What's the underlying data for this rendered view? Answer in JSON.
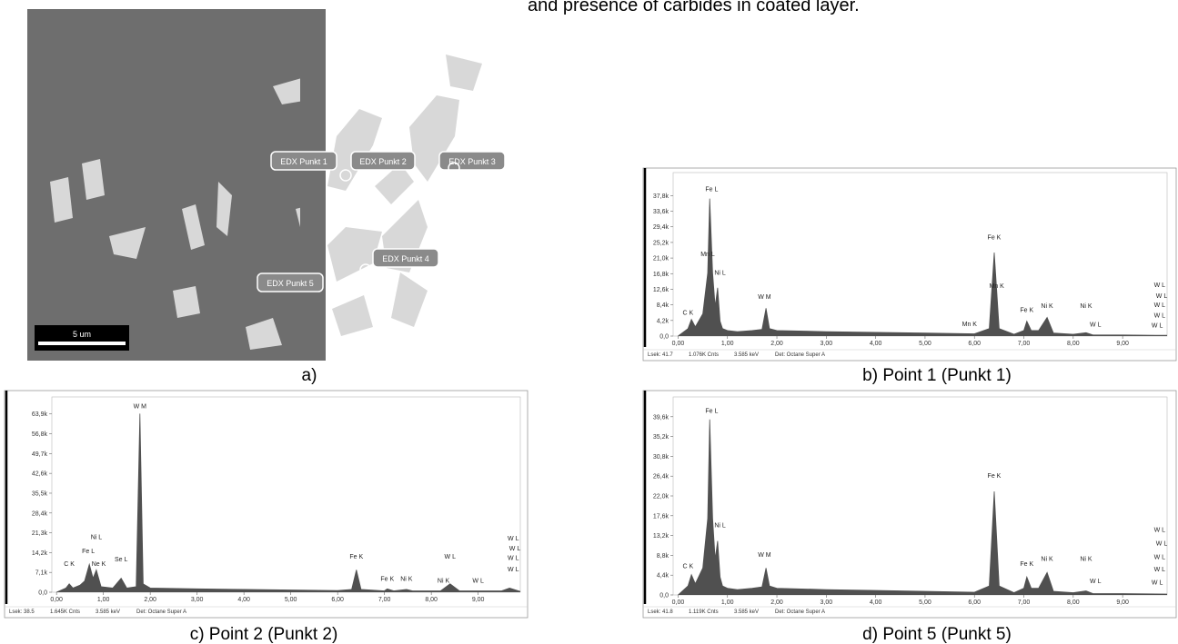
{
  "header": {
    "text": "and presence of carbides in coated layer."
  },
  "image": {
    "labels": [
      "EDX Punkt 1",
      "EDX Punkt 2",
      "EDX Punkt 3",
      "EDX Punkt 4",
      "EDX Punkt 5"
    ],
    "scale_bar": "5 um",
    "caption": "a)"
  },
  "chart_data": [
    {
      "type": "area",
      "caption": "b) Point 1 (Punkt 1)",
      "color": "#505050",
      "x": [
        0.0,
        0.2,
        0.27,
        0.35,
        0.5,
        0.6,
        0.64,
        0.7,
        0.75,
        0.8,
        0.85,
        0.9,
        1.0,
        1.2,
        1.5,
        1.7,
        1.78,
        1.85,
        2.0,
        3.0,
        4.0,
        5.0,
        6.0,
        6.3,
        6.4,
        6.5,
        6.8,
        7.0,
        7.06,
        7.15,
        7.3,
        7.47,
        7.6,
        8.0,
        8.26,
        8.4,
        9.0,
        9.9
      ],
      "values": [
        0,
        2000,
        4500,
        2500,
        6000,
        17000,
        37000,
        17000,
        8000,
        13000,
        4000,
        2000,
        1500,
        1200,
        1500,
        1800,
        7500,
        2000,
        1500,
        1200,
        1000,
        800,
        600,
        2000,
        22500,
        2000,
        500,
        1500,
        4000,
        1500,
        1500,
        5000,
        800,
        500,
        900,
        300,
        300,
        200
      ],
      "xlim": [
        -0.1,
        9.9
      ],
      "xticks": [
        {
          "value": 0,
          "label": "0,00"
        },
        {
          "value": 1,
          "label": "1,00"
        },
        {
          "value": 2,
          "label": "2,00"
        },
        {
          "value": 3,
          "label": "3,00"
        },
        {
          "value": 4,
          "label": "4,00"
        },
        {
          "value": 5,
          "label": "5,00"
        },
        {
          "value": 6,
          "label": "6,00"
        },
        {
          "value": 7,
          "label": "7,00"
        },
        {
          "value": 8,
          "label": "8,00"
        },
        {
          "value": 9,
          "label": "9,00"
        }
      ],
      "ylim": [
        0,
        44000
      ],
      "yticks": [
        {
          "value": 0,
          "label": "0,0"
        },
        {
          "value": 4200,
          "label": "4,2k"
        },
        {
          "value": 8400,
          "label": "8,4k"
        },
        {
          "value": 12600,
          "label": "12,6k"
        },
        {
          "value": 16800,
          "label": "16,8k"
        },
        {
          "value": 21000,
          "label": "21,0k"
        },
        {
          "value": 25200,
          "label": "25,2k"
        },
        {
          "value": 29400,
          "label": "29,4k"
        },
        {
          "value": 33600,
          "label": "33,6k"
        },
        {
          "value": 37800,
          "label": "37,8k"
        }
      ],
      "annotations": [
        {
          "text": "Fe L",
          "x": 0.68,
          "y": 39000
        },
        {
          "text": "Mn L",
          "x": 0.6,
          "y": 21500
        },
        {
          "text": "Ni L",
          "x": 0.85,
          "y": 16500
        },
        {
          "text": "C K",
          "x": 0.2,
          "y": 5800
        },
        {
          "text": "W M",
          "x": 1.75,
          "y": 10000
        },
        {
          "text": "Fe K",
          "x": 6.4,
          "y": 26000
        },
        {
          "text": "Mn K",
          "x": 6.45,
          "y": 13000
        },
        {
          "text": "Mn K",
          "x": 5.9,
          "y": 2700
        },
        {
          "text": "Fe K",
          "x": 7.06,
          "y": 6500
        },
        {
          "text": "Ni K",
          "x": 7.47,
          "y": 7600
        },
        {
          "text": "Ni K",
          "x": 8.26,
          "y": 7600
        },
        {
          "text": "W L",
          "x": 8.45,
          "y": 2600
        },
        {
          "text": "W L",
          "x": 9.75,
          "y": 13200
        },
        {
          "text": "W L",
          "x": 9.9,
          "y": 10300
        },
        {
          "text": "W L",
          "x": 9.75,
          "y": 7800
        },
        {
          "text": "W L",
          "x": 9.75,
          "y": 5000
        },
        {
          "text": "W L",
          "x": 9.7,
          "y": 2300
        }
      ],
      "footer": [
        "Lsek: 41.7",
        "1.076K Cnts",
        "3.585 keV",
        "Det: Octane Super A"
      ]
    },
    {
      "type": "area",
      "caption": "c) Point 2 (Punkt 2)",
      "color": "#505050",
      "x": [
        0.0,
        0.2,
        0.27,
        0.35,
        0.5,
        0.6,
        0.7,
        0.78,
        0.85,
        0.95,
        1.2,
        1.38,
        1.5,
        1.7,
        1.78,
        1.85,
        2.0,
        3.0,
        4.0,
        5.0,
        6.0,
        6.3,
        6.4,
        6.5,
        7.0,
        7.06,
        7.2,
        7.47,
        7.6,
        8.2,
        8.4,
        8.6,
        9.5,
        9.67,
        9.9
      ],
      "values": [
        0,
        1500,
        3000,
        1500,
        2500,
        4000,
        10000,
        5000,
        8000,
        2000,
        1500,
        5000,
        1500,
        2000,
        64000,
        3000,
        1500,
        1200,
        1000,
        800,
        600,
        1000,
        8000,
        1000,
        500,
        1200,
        500,
        1000,
        500,
        500,
        3000,
        500,
        500,
        1500,
        300
      ],
      "xlim": [
        -0.1,
        9.9
      ],
      "xticks": [
        {
          "value": 0,
          "label": "0,00"
        },
        {
          "value": 1,
          "label": "1,00"
        },
        {
          "value": 2,
          "label": "2,00"
        },
        {
          "value": 3,
          "label": "3,00"
        },
        {
          "value": 4,
          "label": "4,00"
        },
        {
          "value": 5,
          "label": "5,00"
        },
        {
          "value": 6,
          "label": "6,00"
        },
        {
          "value": 7,
          "label": "7,00"
        },
        {
          "value": 8,
          "label": "8,00"
        },
        {
          "value": 9,
          "label": "9,00"
        }
      ],
      "ylim": [
        0,
        70000
      ],
      "yticks": [
        {
          "value": 0,
          "label": "0,0"
        },
        {
          "value": 7100,
          "label": "7,1k"
        },
        {
          "value": 14200,
          "label": "14,2k"
        },
        {
          "value": 21300,
          "label": "21,3k"
        },
        {
          "value": 28400,
          "label": "28,4k"
        },
        {
          "value": 35500,
          "label": "35,5k"
        },
        {
          "value": 42600,
          "label": "42,6k"
        },
        {
          "value": 49700,
          "label": "49,7k"
        },
        {
          "value": 56800,
          "label": "56,8k"
        },
        {
          "value": 63900,
          "label": "63,9k"
        }
      ],
      "annotations": [
        {
          "text": "W M",
          "x": 1.78,
          "y": 66000
        },
        {
          "text": "Ni L",
          "x": 0.85,
          "y": 19000
        },
        {
          "text": "Fe L",
          "x": 0.68,
          "y": 14000
        },
        {
          "text": "C K",
          "x": 0.27,
          "y": 9500
        },
        {
          "text": "Ne K",
          "x": 0.9,
          "y": 9500
        },
        {
          "text": "Se L",
          "x": 1.38,
          "y": 11000
        },
        {
          "text": "Fe K",
          "x": 6.4,
          "y": 12000
        },
        {
          "text": "Fe K",
          "x": 7.06,
          "y": 4000
        },
        {
          "text": "Ni K",
          "x": 7.47,
          "y": 4000
        },
        {
          "text": "Ni K",
          "x": 8.26,
          "y": 3500
        },
        {
          "text": "W L",
          "x": 8.4,
          "y": 12000
        },
        {
          "text": "W L",
          "x": 9.0,
          "y": 3500
        },
        {
          "text": "W L",
          "x": 9.75,
          "y": 18500
        },
        {
          "text": "W L",
          "x": 9.9,
          "y": 15000
        },
        {
          "text": "W L",
          "x": 9.75,
          "y": 11500
        },
        {
          "text": "W L",
          "x": 9.75,
          "y": 7500
        }
      ],
      "footer": [
        "Lsek: 38.5",
        "1.645K Cnts",
        "3.585 keV",
        "Det: Octane Super A"
      ]
    },
    {
      "type": "area",
      "caption": "d) Point 5 (Punkt 5)",
      "color": "#505050",
      "x": [
        0.0,
        0.2,
        0.27,
        0.35,
        0.5,
        0.6,
        0.64,
        0.7,
        0.75,
        0.8,
        0.85,
        0.9,
        1.0,
        1.2,
        1.5,
        1.7,
        1.78,
        1.85,
        2.0,
        3.0,
        4.0,
        5.0,
        6.0,
        6.3,
        6.4,
        6.5,
        6.8,
        7.0,
        7.06,
        7.15,
        7.3,
        7.47,
        7.6,
        8.0,
        8.26,
        8.4,
        9.0,
        9.9
      ],
      "values": [
        0,
        2000,
        4500,
        2500,
        6000,
        17000,
        39000,
        17000,
        8000,
        12000,
        4000,
        2000,
        1500,
        1200,
        1500,
        1800,
        6000,
        2000,
        1500,
        1200,
        1000,
        800,
        600,
        2000,
        23000,
        2000,
        500,
        1500,
        4000,
        1500,
        1500,
        5000,
        800,
        500,
        900,
        300,
        300,
        200
      ],
      "xlim": [
        -0.1,
        9.9
      ],
      "xticks": [
        {
          "value": 0,
          "label": "0,00"
        },
        {
          "value": 1,
          "label": "1,00"
        },
        {
          "value": 2,
          "label": "2,00"
        },
        {
          "value": 3,
          "label": "3,00"
        },
        {
          "value": 4,
          "label": "4,00"
        },
        {
          "value": 5,
          "label": "5,00"
        },
        {
          "value": 6,
          "label": "6,00"
        },
        {
          "value": 7,
          "label": "7,00"
        },
        {
          "value": 8,
          "label": "8,00"
        },
        {
          "value": 9,
          "label": "9,00"
        }
      ],
      "ylim": [
        0,
        44000
      ],
      "yticks": [
        {
          "value": 0,
          "label": "0,0"
        },
        {
          "value": 4400,
          "label": "4,4k"
        },
        {
          "value": 8800,
          "label": "8,8k"
        },
        {
          "value": 13200,
          "label": "13,2k"
        },
        {
          "value": 17600,
          "label": "17,6k"
        },
        {
          "value": 22000,
          "label": "22,0k"
        },
        {
          "value": 26400,
          "label": "26,4k"
        },
        {
          "value": 30800,
          "label": "30,8k"
        },
        {
          "value": 35200,
          "label": "35,2k"
        },
        {
          "value": 39600,
          "label": "39,6k"
        }
      ],
      "annotations": [
        {
          "text": "Fe L",
          "x": 0.68,
          "y": 40500
        },
        {
          "text": "Ni L",
          "x": 0.85,
          "y": 15000
        },
        {
          "text": "C K",
          "x": 0.2,
          "y": 6000
        },
        {
          "text": "W M",
          "x": 1.75,
          "y": 8500
        },
        {
          "text": "Fe K",
          "x": 6.4,
          "y": 26000
        },
        {
          "text": "Fe K",
          "x": 7.06,
          "y": 6500
        },
        {
          "text": "Ni K",
          "x": 7.47,
          "y": 7600
        },
        {
          "text": "Ni K",
          "x": 8.26,
          "y": 7600
        },
        {
          "text": "W L",
          "x": 8.45,
          "y": 2600
        },
        {
          "text": "W L",
          "x": 9.75,
          "y": 14000
        },
        {
          "text": "W L",
          "x": 9.9,
          "y": 11000
        },
        {
          "text": "W L",
          "x": 9.75,
          "y": 8000
        },
        {
          "text": "W L",
          "x": 9.75,
          "y": 5200
        },
        {
          "text": "W L",
          "x": 9.7,
          "y": 2300
        }
      ],
      "footer": [
        "Lsek: 41.8",
        "1.119K Cnts",
        "3.585 keV",
        "Det: Octane Super A"
      ]
    }
  ]
}
